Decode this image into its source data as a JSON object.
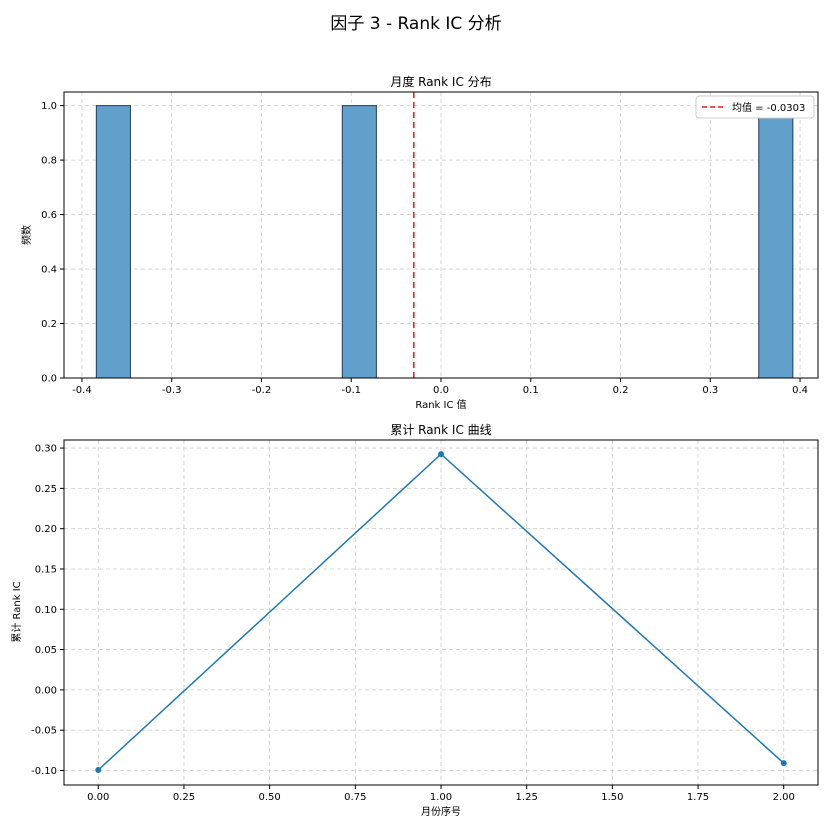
{
  "figure": {
    "suptitle": "因子 3 - Rank IC 分析"
  },
  "chart_data": [
    {
      "type": "bar",
      "title": "月度 Rank IC 分布",
      "xlabel": "Rank IC 值",
      "ylabel": "频数",
      "xlim": [
        -0.42,
        0.42
      ],
      "ylim": [
        0,
        1.05
      ],
      "xticks": [
        -0.4,
        -0.3,
        -0.2,
        -0.1,
        0.0,
        0.1,
        0.2,
        0.3,
        0.4
      ],
      "xtick_labels": [
        "-0.4",
        "-0.3",
        "-0.2",
        "-0.1",
        "0.0",
        "0.1",
        "0.2",
        "0.3",
        "0.4"
      ],
      "yticks": [
        0.0,
        0.2,
        0.4,
        0.6,
        0.8,
        1.0
      ],
      "ytick_labels": [
        "0.0",
        "0.2",
        "0.4",
        "0.6",
        "0.8",
        "1.0"
      ],
      "bins": [
        {
          "x_start": -0.384,
          "x_end": -0.346,
          "count": 1
        },
        {
          "x_start": -0.11,
          "x_end": -0.072,
          "count": 1
        },
        {
          "x_start": 0.354,
          "x_end": 0.392,
          "count": 1
        }
      ],
      "mean_line": {
        "x": -0.0303,
        "label": "均值 = -0.0303",
        "color": "#e41a1c"
      },
      "bar_color": "#62a0cc",
      "bar_edge_color": "#1f3b5a",
      "grid": true,
      "legend_placement": "top-right"
    },
    {
      "type": "line",
      "title": "累计 Rank IC 曲线",
      "xlabel": "月份序号",
      "ylabel": "累计 Rank IC",
      "x": [
        0.0,
        1.0,
        2.0
      ],
      "y": [
        -0.0994,
        0.2925,
        -0.0909
      ],
      "xlim": [
        -0.1,
        2.1
      ],
      "ylim": [
        -0.118,
        0.31
      ],
      "xticks": [
        0.0,
        0.25,
        0.5,
        0.75,
        1.0,
        1.25,
        1.5,
        1.75,
        2.0
      ],
      "xtick_labels": [
        "0.00",
        "0.25",
        "0.50",
        "0.75",
        "1.00",
        "1.25",
        "1.50",
        "1.75",
        "2.00"
      ],
      "yticks": [
        -0.1,
        -0.05,
        0.0,
        0.05,
        0.1,
        0.15,
        0.2,
        0.25,
        0.3
      ],
      "ytick_labels": [
        "-0.10",
        "-0.05",
        "0.00",
        "0.05",
        "0.10",
        "0.15",
        "0.20",
        "0.25",
        "0.30"
      ],
      "line_color": "#1f77b4",
      "marker": "circle",
      "grid": true
    }
  ]
}
